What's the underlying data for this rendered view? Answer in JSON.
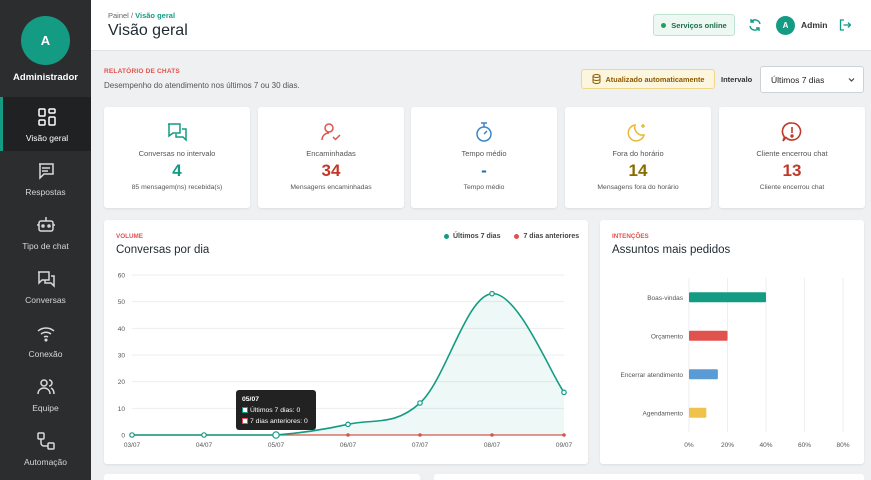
{
  "sidebar": {
    "avatar_initial": "A",
    "user_role": "Administrador",
    "items": [
      {
        "label": "Visão geral",
        "icon": "dashboard-icon"
      },
      {
        "label": "Respostas",
        "icon": "message-icon"
      },
      {
        "label": "Tipo de chat",
        "icon": "bot-icon"
      },
      {
        "label": "Conversas",
        "icon": "chats-icon"
      },
      {
        "label": "Conexão",
        "icon": "wifi-icon"
      },
      {
        "label": "Equipe",
        "icon": "users-icon"
      },
      {
        "label": "Automação",
        "icon": "workflow-icon"
      }
    ]
  },
  "header": {
    "breadcrumb_root": "Painel",
    "breadcrumb_sep": "/",
    "breadcrumb_current": "Visão geral",
    "title": "Visão geral",
    "services_status": "Serviços online",
    "user_initial": "A",
    "user_name": "Admin"
  },
  "report": {
    "kicker": "RELATÓRIO DE CHATS",
    "description": "Desempenho do atendimento nos últimos 7 ou 30 dias.",
    "auto_update": "Atualizado automaticamente",
    "interval_label": "Intervalo",
    "interval_value": "Últimos 7 dias"
  },
  "kpis": [
    {
      "title": "Conversas no intervalo",
      "value": "4",
      "sub": "85 mensagem(ns) recebida(s)",
      "color": "#139b84",
      "icon": "chats-icon"
    },
    {
      "title": "Encaminhadas",
      "value": "34",
      "sub": "Mensagens encaminhadas",
      "color": "#c0392b",
      "icon": "user-check-icon"
    },
    {
      "title": "Tempo médio",
      "value": "-",
      "sub": "Tempo médio",
      "color": "#1f6fa8",
      "icon": "stopwatch-icon"
    },
    {
      "title": "Fora do horário",
      "value": "14",
      "sub": "Mensagens fora do horário",
      "color": "#8a6d00",
      "icon": "moon-icon"
    },
    {
      "title": "Cliente encerrou chat",
      "value": "13",
      "sub": "Cliente encerrou chat",
      "color": "#c0392b",
      "icon": "alert-icon"
    }
  ],
  "volume": {
    "kicker": "VOLUME",
    "title": "Conversas por dia",
    "tooltip": {
      "date": "05/07",
      "line1": "Últimos 7 dias: 0",
      "line2": "7 dias anteriores: 0"
    }
  },
  "intents": {
    "kicker": "INTENÇÕES",
    "title": "Assuntos mais pedidos"
  },
  "colors": {
    "teal": "#139b84",
    "red": "#e0524d",
    "blue": "#5b9bd5",
    "yellow": "#f0c14b"
  },
  "chart_data": [
    {
      "type": "line",
      "x": [
        "03/07",
        "04/07",
        "05/07",
        "06/07",
        "07/07",
        "08/07",
        "09/07"
      ],
      "series": [
        {
          "name": "Últimos 7 dias",
          "values": [
            0,
            0,
            0,
            4,
            12,
            53,
            16
          ],
          "color": "#139b84"
        },
        {
          "name": "7 dias anteriores",
          "values": [
            0,
            0,
            0,
            0,
            0,
            0,
            0
          ],
          "color": "#e0524d"
        }
      ],
      "ylim": [
        0,
        60
      ],
      "yticks": [
        0,
        10,
        20,
        30,
        40,
        50,
        60
      ],
      "grid": true,
      "legend": "top-right"
    },
    {
      "type": "bar",
      "orientation": "horizontal",
      "categories": [
        "Boas-vindas",
        "Orçamento",
        "Encerrar atendimento",
        "Agendamento"
      ],
      "values": [
        40,
        20,
        15,
        9
      ],
      "colors": [
        "#139b84",
        "#e0524d",
        "#5b9bd5",
        "#f0c14b"
      ],
      "xlim": [
        0,
        80
      ],
      "xticks": [
        "0%",
        "20%",
        "40%",
        "60%",
        "80%"
      ],
      "grid": true
    }
  ]
}
